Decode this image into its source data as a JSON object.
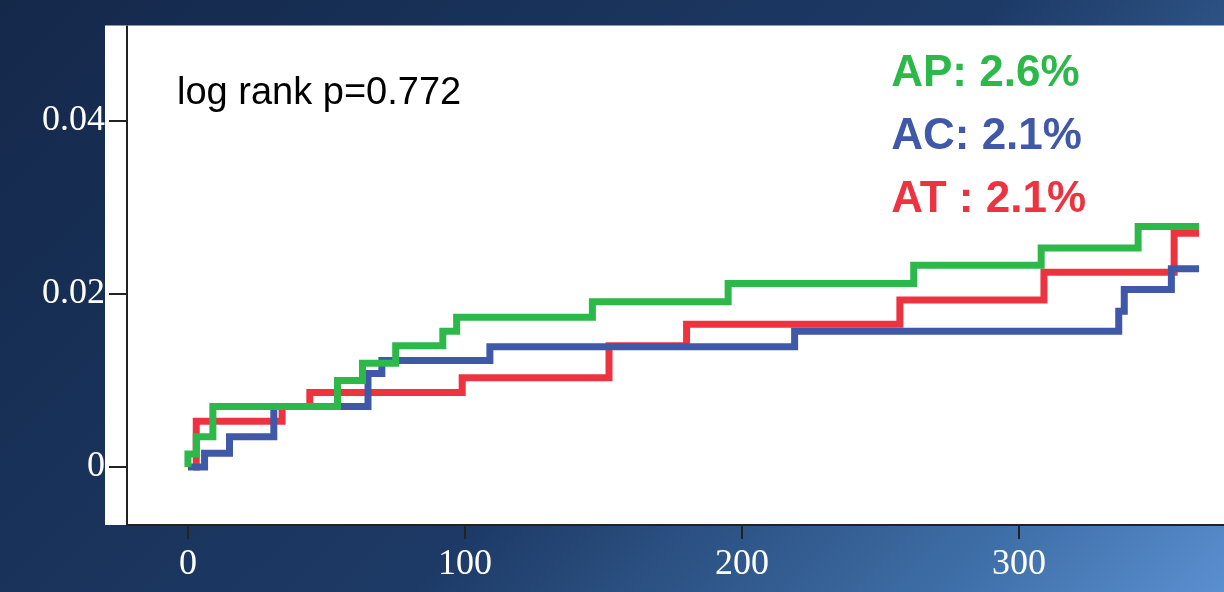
{
  "chart_data": {
    "type": "step",
    "annotations": [
      "log rank p=0.772"
    ],
    "xlim": [
      -22,
      374
    ],
    "xticks": [
      0,
      100,
      200,
      300
    ],
    "ylim": [
      -0.0067,
      0.051
    ],
    "yticks": [
      0,
      0.02,
      0.04
    ],
    "grid": false,
    "legend": "top right",
    "series": [
      {
        "name": "AP: 2.6%",
        "color": "#2db84a",
        "x": [
          0,
          0,
          3,
          9,
          54,
          63,
          75,
          92,
          97,
          146,
          195,
          262,
          308,
          343,
          365
        ],
        "values": [
          0,
          0.0015,
          0.0035,
          0.007,
          0.01,
          0.012,
          0.014,
          0.0157,
          0.0173,
          0.0191,
          0.0212,
          0.0233,
          0.0253,
          0.0278,
          0.0278
        ]
      },
      {
        "name": "AC: 2.1%",
        "color": "#3f58a8",
        "x": [
          0,
          6,
          15,
          31,
          65,
          70,
          109,
          219,
          336,
          338,
          355,
          365
        ],
        "values": [
          0,
          0.0016,
          0.0035,
          0.007,
          0.0108,
          0.0123,
          0.0139,
          0.0157,
          0.018,
          0.0205,
          0.0229,
          0.0229
        ]
      },
      {
        "name": "AT : 2.1%",
        "color": "#ee3340",
        "x": [
          2,
          3,
          34,
          44,
          99,
          152,
          180,
          257,
          309,
          356,
          365
        ],
        "values": [
          0,
          0.0053,
          0.007,
          0.0086,
          0.0103,
          0.014,
          0.0165,
          0.0193,
          0.0225,
          0.027,
          0.027
        ]
      }
    ]
  }
}
